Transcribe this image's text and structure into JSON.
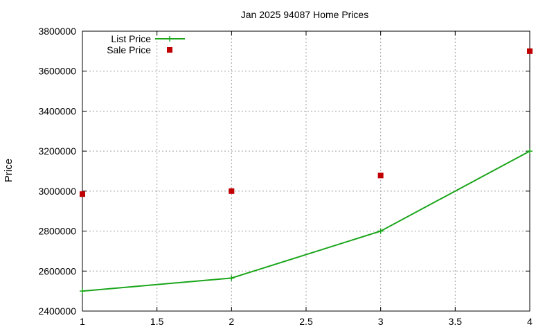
{
  "chart_data": {
    "type": "line",
    "title": "Jan 2025 94087 Home Prices",
    "xlabel": "",
    "ylabel": "Price",
    "xlim": [
      1,
      4
    ],
    "ylim": [
      2400000,
      3800000
    ],
    "xticks": [
      1,
      1.5,
      2,
      2.5,
      3,
      3.5,
      4
    ],
    "xtick_labels": [
      "1",
      "1.5",
      "2",
      "2.5",
      "3",
      "3.5",
      "4"
    ],
    "yticks": [
      2400000,
      2600000,
      2800000,
      3000000,
      3200000,
      3400000,
      3600000,
      3800000
    ],
    "ytick_labels": [
      "2400000",
      "2600000",
      "2800000",
      "3000000",
      "3200000",
      "3400000",
      "3600000",
      "3800000"
    ],
    "grid": true,
    "legend": "top-left",
    "series": [
      {
        "name": "List Price",
        "style": "line+plus",
        "color": "#1aa51a",
        "x": [
          1,
          2,
          3,
          4
        ],
        "values": [
          2500000,
          2565000,
          2800000,
          3200000
        ]
      },
      {
        "name": "Sale Price",
        "style": "square",
        "color": "#c00000",
        "x": [
          1,
          2,
          3,
          4
        ],
        "values": [
          2985000,
          3000000,
          3078000,
          3700000
        ]
      }
    ]
  }
}
